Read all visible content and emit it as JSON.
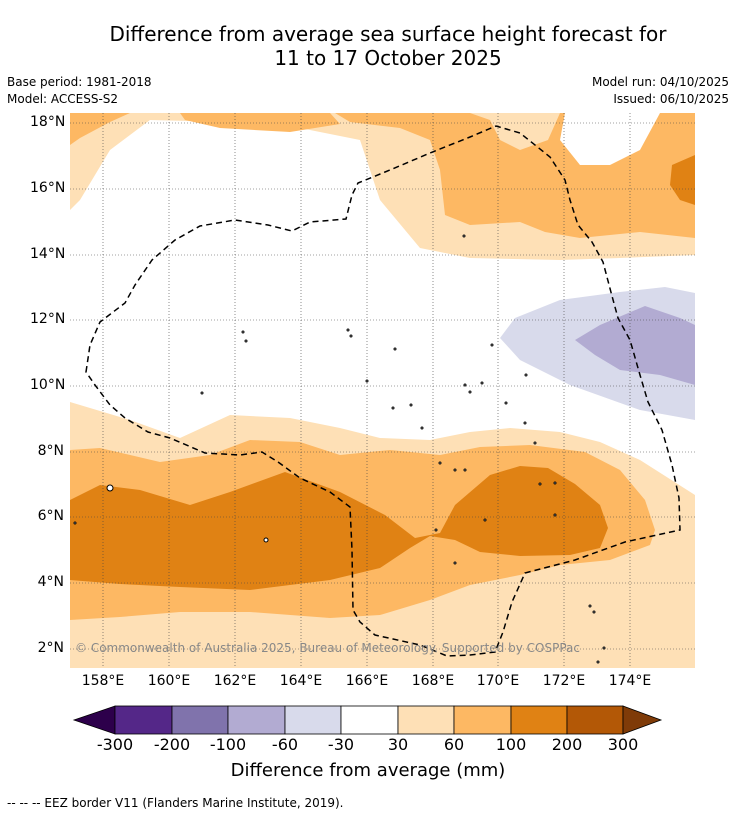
{
  "title_line1": "Difference from average sea surface height forecast for",
  "title_line2": "11 to 17 October 2025",
  "base_period": "Base period: 1981-2018",
  "model": "Model: ACCESS-S2",
  "model_run": "Model run: 04/10/2025",
  "issued": "Issued: 06/10/2025",
  "copyright": "© Commonwealth of Australia 2025, Bureau of Meteorology. Supported by COSPPac",
  "lat_labels": [
    "18°N",
    "16°N",
    "14°N",
    "12°N",
    "10°N",
    "8°N",
    "6°N",
    "4°N",
    "2°N"
  ],
  "lon_labels": [
    "158°E",
    "160°E",
    "162°E",
    "164°E",
    "166°E",
    "168°E",
    "170°E",
    "172°E",
    "174°E"
  ],
  "colorbar": {
    "title": "Difference from average (mm)",
    "ticks": [
      "-300",
      "-200",
      "-100",
      "-60",
      "-30",
      "30",
      "60",
      "100",
      "200",
      "300"
    ],
    "colors": [
      "#2d004b",
      "#542788",
      "#8073ac",
      "#b2abd2",
      "#d8daeb",
      "#ffffff",
      "#fee0b6",
      "#fdb863",
      "#e08214",
      "#b35806",
      "#7f3b08"
    ]
  },
  "footnote": "--  --  -- EEZ border V11 (Flanders Marine Institute, 2019)."
}
